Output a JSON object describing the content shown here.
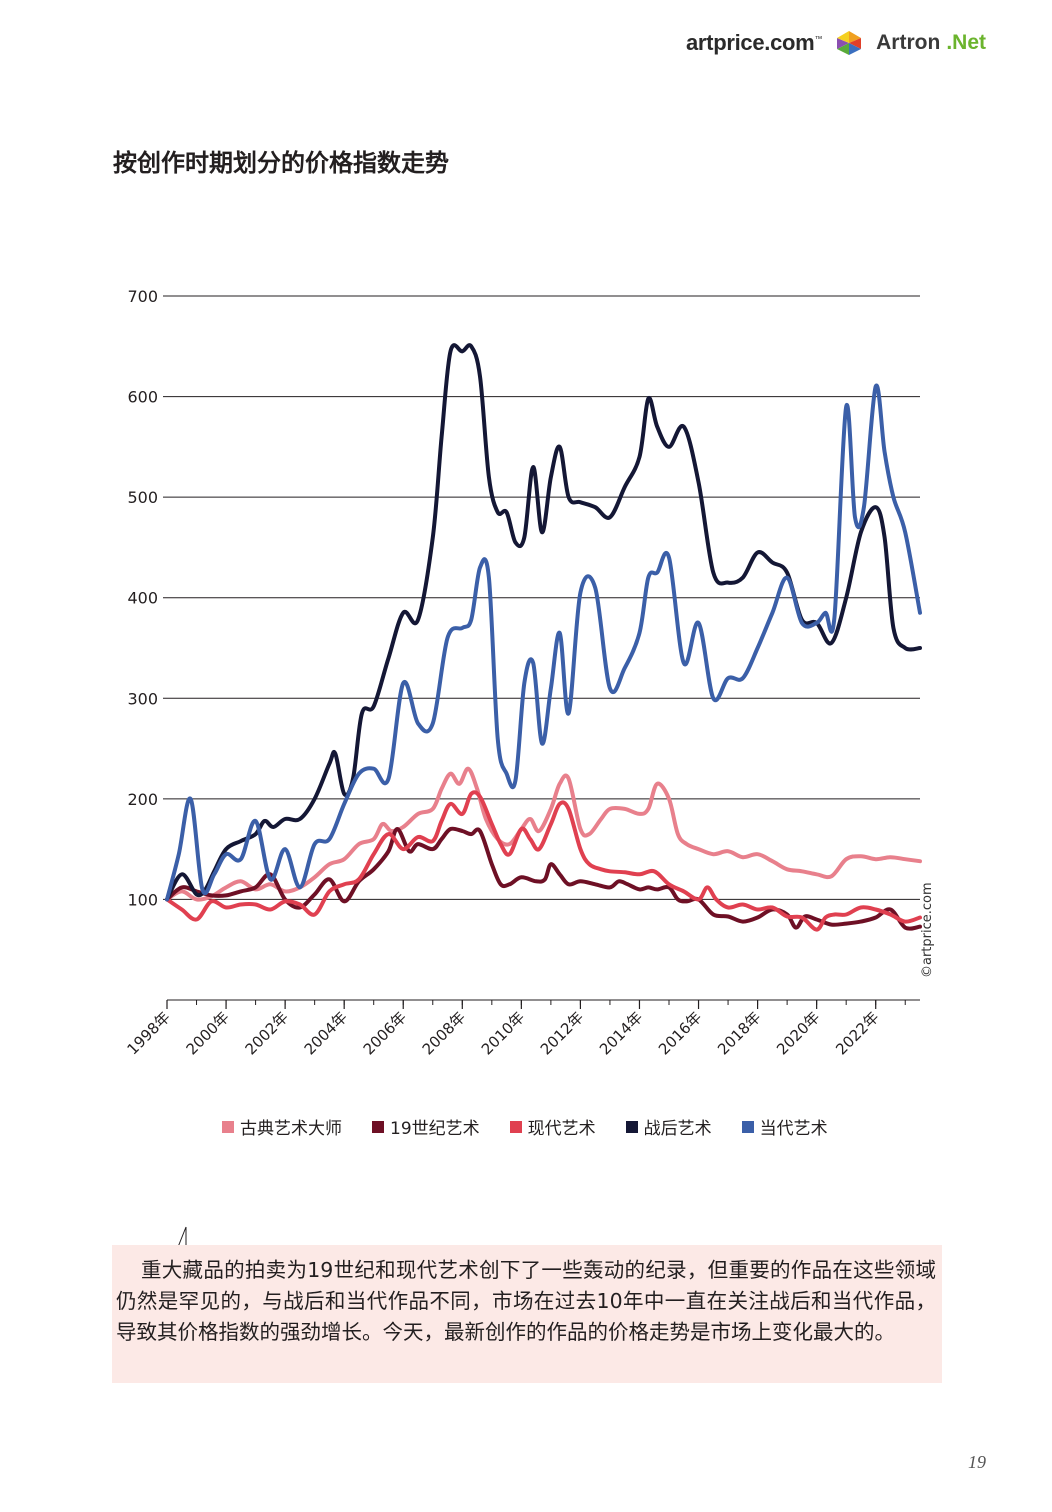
{
  "brand": {
    "artprice": "artprice.com",
    "artprice_tm": "™",
    "artron": "Artron",
    "artron_net": ".Net"
  },
  "page_title": "按创作时期划分的价格指数走势",
  "copyright": "©artprice.com",
  "callout_text": "重大藏品的拍卖为19世纪和现代艺术创下了一些轰动的纪录，但重要的作品在这些领域仍然是罕见的，与战后和当代作品不同，市场在过去10年中一直在关注战后和当代作品，导致其价格指数的强劲增长。今天，最新创作的作品的价格走势是市场上变化最大的。",
  "page_number": "19",
  "chart_data": {
    "type": "line",
    "x_ticks": [
      "1998年",
      "2000年",
      "2002年",
      "2004年",
      "2006年",
      "2008年",
      "2010年",
      "2012年",
      "2014年",
      "2016年",
      "2018年",
      "2020年",
      "2022年"
    ],
    "y_ticks": [
      100,
      200,
      300,
      400,
      500,
      600,
      700
    ],
    "xlim": [
      1998,
      2023.5
    ],
    "ylim": [
      0,
      700
    ],
    "grid": "horizontal",
    "legend_position": "bottom",
    "series": [
      {
        "name": "古典艺术大师",
        "color": "#e8808c",
        "points": [
          [
            1998,
            100
          ],
          [
            1998.5,
            108
          ],
          [
            1999,
            100
          ],
          [
            1999.5,
            103
          ],
          [
            2000,
            112
          ],
          [
            2000.5,
            118
          ],
          [
            2001,
            110
          ],
          [
            2001.5,
            115
          ],
          [
            2002,
            108
          ],
          [
            2002.5,
            112
          ],
          [
            2003,
            122
          ],
          [
            2003.5,
            135
          ],
          [
            2004,
            140
          ],
          [
            2004.5,
            155
          ],
          [
            2005,
            160
          ],
          [
            2005.3,
            175
          ],
          [
            2005.6,
            168
          ],
          [
            2006,
            172
          ],
          [
            2006.5,
            185
          ],
          [
            2007,
            190
          ],
          [
            2007.3,
            210
          ],
          [
            2007.6,
            225
          ],
          [
            2007.9,
            215
          ],
          [
            2008.2,
            230
          ],
          [
            2008.5,
            210
          ],
          [
            2008.8,
            180
          ],
          [
            2009.2,
            160
          ],
          [
            2009.6,
            155
          ],
          [
            2010,
            170
          ],
          [
            2010.3,
            180
          ],
          [
            2010.6,
            168
          ],
          [
            2011,
            190
          ],
          [
            2011.3,
            215
          ],
          [
            2011.6,
            220
          ],
          [
            2012,
            170
          ],
          [
            2012.3,
            165
          ],
          [
            2012.7,
            180
          ],
          [
            2013,
            190
          ],
          [
            2013.5,
            190
          ],
          [
            2014,
            185
          ],
          [
            2014.3,
            190
          ],
          [
            2014.6,
            215
          ],
          [
            2015,
            200
          ],
          [
            2015.3,
            165
          ],
          [
            2015.6,
            155
          ],
          [
            2016,
            150
          ],
          [
            2016.5,
            145
          ],
          [
            2017,
            148
          ],
          [
            2017.5,
            142
          ],
          [
            2018,
            145
          ],
          [
            2018.5,
            138
          ],
          [
            2019,
            130
          ],
          [
            2019.5,
            128
          ],
          [
            2020,
            125
          ],
          [
            2020.5,
            123
          ],
          [
            2021,
            140
          ],
          [
            2021.5,
            143
          ],
          [
            2022,
            140
          ],
          [
            2022.5,
            142
          ],
          [
            2023,
            140
          ],
          [
            2023.5,
            138
          ]
        ]
      },
      {
        "name": "19世纪艺术",
        "color": "#6e1025",
        "points": [
          [
            1998,
            100
          ],
          [
            1998.5,
            112
          ],
          [
            1999,
            108
          ],
          [
            1999.5,
            104
          ],
          [
            2000,
            104
          ],
          [
            2000.5,
            108
          ],
          [
            2001,
            112
          ],
          [
            2001.5,
            125
          ],
          [
            2002,
            100
          ],
          [
            2002.5,
            92
          ],
          [
            2003,
            105
          ],
          [
            2003.5,
            120
          ],
          [
            2004,
            98
          ],
          [
            2004.5,
            118
          ],
          [
            2005,
            130
          ],
          [
            2005.5,
            148
          ],
          [
            2005.8,
            170
          ],
          [
            2006.2,
            148
          ],
          [
            2006.5,
            155
          ],
          [
            2007,
            150
          ],
          [
            2007.3,
            160
          ],
          [
            2007.6,
            170
          ],
          [
            2008,
            168
          ],
          [
            2008.3,
            165
          ],
          [
            2008.6,
            168
          ],
          [
            2009,
            135
          ],
          [
            2009.3,
            115
          ],
          [
            2009.6,
            115
          ],
          [
            2010,
            122
          ],
          [
            2010.5,
            118
          ],
          [
            2010.8,
            120
          ],
          [
            2011,
            135
          ],
          [
            2011.3,
            125
          ],
          [
            2011.6,
            115
          ],
          [
            2012,
            118
          ],
          [
            2012.5,
            115
          ],
          [
            2013,
            112
          ],
          [
            2013.3,
            118
          ],
          [
            2013.6,
            115
          ],
          [
            2014,
            110
          ],
          [
            2014.3,
            112
          ],
          [
            2014.6,
            110
          ],
          [
            2015,
            112
          ],
          [
            2015.3,
            100
          ],
          [
            2015.6,
            98
          ],
          [
            2016,
            100
          ],
          [
            2016.5,
            85
          ],
          [
            2017,
            83
          ],
          [
            2017.5,
            78
          ],
          [
            2018,
            82
          ],
          [
            2018.5,
            90
          ],
          [
            2019,
            85
          ],
          [
            2019.3,
            72
          ],
          [
            2019.6,
            83
          ],
          [
            2020,
            80
          ],
          [
            2020.5,
            75
          ],
          [
            2021,
            76
          ],
          [
            2021.5,
            78
          ],
          [
            2022,
            82
          ],
          [
            2022.5,
            90
          ],
          [
            2023,
            72
          ],
          [
            2023.5,
            73
          ]
        ]
      },
      {
        "name": "现代艺术",
        "color": "#e04050",
        "points": [
          [
            1998,
            100
          ],
          [
            1998.5,
            90
          ],
          [
            1999,
            80
          ],
          [
            1999.5,
            98
          ],
          [
            2000,
            92
          ],
          [
            2000.5,
            95
          ],
          [
            2001,
            95
          ],
          [
            2001.5,
            90
          ],
          [
            2002,
            98
          ],
          [
            2002.5,
            95
          ],
          [
            2003,
            85
          ],
          [
            2003.5,
            108
          ],
          [
            2004,
            115
          ],
          [
            2004.5,
            120
          ],
          [
            2005,
            145
          ],
          [
            2005.5,
            165
          ],
          [
            2006,
            150
          ],
          [
            2006.5,
            162
          ],
          [
            2007,
            158
          ],
          [
            2007.3,
            178
          ],
          [
            2007.6,
            195
          ],
          [
            2008,
            185
          ],
          [
            2008.3,
            205
          ],
          [
            2008.6,
            202
          ],
          [
            2009,
            175
          ],
          [
            2009.3,
            155
          ],
          [
            2009.6,
            145
          ],
          [
            2010,
            170
          ],
          [
            2010.3,
            160
          ],
          [
            2010.6,
            150
          ],
          [
            2011,
            175
          ],
          [
            2011.3,
            195
          ],
          [
            2011.6,
            190
          ],
          [
            2012,
            150
          ],
          [
            2012.3,
            135
          ],
          [
            2012.7,
            130
          ],
          [
            2013,
            128
          ],
          [
            2013.5,
            127
          ],
          [
            2014,
            125
          ],
          [
            2014.5,
            128
          ],
          [
            2015,
            115
          ],
          [
            2015.5,
            108
          ],
          [
            2016,
            100
          ],
          [
            2016.3,
            112
          ],
          [
            2016.6,
            100
          ],
          [
            2017,
            92
          ],
          [
            2017.5,
            95
          ],
          [
            2018,
            90
          ],
          [
            2018.5,
            92
          ],
          [
            2019,
            83
          ],
          [
            2019.5,
            82
          ],
          [
            2020,
            70
          ],
          [
            2020.3,
            82
          ],
          [
            2020.6,
            85
          ],
          [
            2021,
            85
          ],
          [
            2021.5,
            92
          ],
          [
            2022,
            90
          ],
          [
            2022.5,
            85
          ],
          [
            2023,
            78
          ],
          [
            2023.5,
            82
          ]
        ]
      },
      {
        "name": "战后艺术",
        "color": "#141735",
        "points": [
          [
            1998,
            100
          ],
          [
            1998.5,
            125
          ],
          [
            1999,
            105
          ],
          [
            1999.3,
            110
          ],
          [
            1999.6,
            128
          ],
          [
            2000,
            150
          ],
          [
            2000.5,
            158
          ],
          [
            2001,
            165
          ],
          [
            2001.3,
            178
          ],
          [
            2001.6,
            172
          ],
          [
            2002,
            180
          ],
          [
            2002.5,
            180
          ],
          [
            2003,
            200
          ],
          [
            2003.5,
            235
          ],
          [
            2003.7,
            245
          ],
          [
            2004,
            205
          ],
          [
            2004.3,
            220
          ],
          [
            2004.6,
            285
          ],
          [
            2005,
            292
          ],
          [
            2005.5,
            340
          ],
          [
            2006,
            385
          ],
          [
            2006.5,
            378
          ],
          [
            2007,
            460
          ],
          [
            2007.3,
            560
          ],
          [
            2007.6,
            645
          ],
          [
            2008,
            645
          ],
          [
            2008.3,
            650
          ],
          [
            2008.6,
            620
          ],
          [
            2008.9,
            520
          ],
          [
            2009.2,
            485
          ],
          [
            2009.5,
            485
          ],
          [
            2009.8,
            455
          ],
          [
            2010.1,
            460
          ],
          [
            2010.4,
            530
          ],
          [
            2010.7,
            465
          ],
          [
            2011,
            520
          ],
          [
            2011.3,
            550
          ],
          [
            2011.6,
            500
          ],
          [
            2012,
            495
          ],
          [
            2012.5,
            490
          ],
          [
            2013,
            480
          ],
          [
            2013.5,
            510
          ],
          [
            2014,
            540
          ],
          [
            2014.3,
            598
          ],
          [
            2014.6,
            570
          ],
          [
            2015,
            550
          ],
          [
            2015.5,
            570
          ],
          [
            2016,
            515
          ],
          [
            2016.5,
            425
          ],
          [
            2017,
            415
          ],
          [
            2017.5,
            420
          ],
          [
            2018,
            445
          ],
          [
            2018.5,
            435
          ],
          [
            2019,
            425
          ],
          [
            2019.5,
            378
          ],
          [
            2020,
            375
          ],
          [
            2020.5,
            355
          ],
          [
            2021,
            400
          ],
          [
            2021.5,
            465
          ],
          [
            2022,
            490
          ],
          [
            2022.3,
            460
          ],
          [
            2022.6,
            370
          ],
          [
            2023,
            350
          ],
          [
            2023.5,
            350
          ]
        ]
      },
      {
        "name": "当代艺术",
        "color": "#3b5fa8",
        "points": [
          [
            1998,
            100
          ],
          [
            1998.4,
            145
          ],
          [
            1998.8,
            200
          ],
          [
            1999.2,
            110
          ],
          [
            1999.6,
            125
          ],
          [
            2000,
            145
          ],
          [
            2000.5,
            140
          ],
          [
            2001,
            178
          ],
          [
            2001.5,
            120
          ],
          [
            2002,
            150
          ],
          [
            2002.5,
            112
          ],
          [
            2003,
            155
          ],
          [
            2003.5,
            160
          ],
          [
            2004,
            195
          ],
          [
            2004.5,
            225
          ],
          [
            2005,
            230
          ],
          [
            2005.5,
            220
          ],
          [
            2006,
            315
          ],
          [
            2006.5,
            275
          ],
          [
            2007,
            275
          ],
          [
            2007.5,
            360
          ],
          [
            2008,
            370
          ],
          [
            2008.3,
            378
          ],
          [
            2008.6,
            430
          ],
          [
            2008.9,
            420
          ],
          [
            2009.2,
            260
          ],
          [
            2009.5,
            225
          ],
          [
            2009.8,
            218
          ],
          [
            2010.1,
            315
          ],
          [
            2010.4,
            335
          ],
          [
            2010.7,
            255
          ],
          [
            2011,
            310
          ],
          [
            2011.3,
            365
          ],
          [
            2011.6,
            285
          ],
          [
            2012,
            405
          ],
          [
            2012.5,
            410
          ],
          [
            2013,
            310
          ],
          [
            2013.5,
            330
          ],
          [
            2014,
            365
          ],
          [
            2014.3,
            420
          ],
          [
            2014.6,
            425
          ],
          [
            2015,
            440
          ],
          [
            2015.5,
            335
          ],
          [
            2016,
            375
          ],
          [
            2016.5,
            300
          ],
          [
            2017,
            320
          ],
          [
            2017.5,
            320
          ],
          [
            2018,
            350
          ],
          [
            2018.5,
            385
          ],
          [
            2019,
            420
          ],
          [
            2019.5,
            375
          ],
          [
            2020,
            375
          ],
          [
            2020.3,
            385
          ],
          [
            2020.6,
            380
          ],
          [
            2021,
            590
          ],
          [
            2021.3,
            480
          ],
          [
            2021.6,
            490
          ],
          [
            2022,
            610
          ],
          [
            2022.3,
            545
          ],
          [
            2022.6,
            500
          ],
          [
            2023,
            465
          ],
          [
            2023.5,
            385
          ]
        ]
      }
    ]
  }
}
